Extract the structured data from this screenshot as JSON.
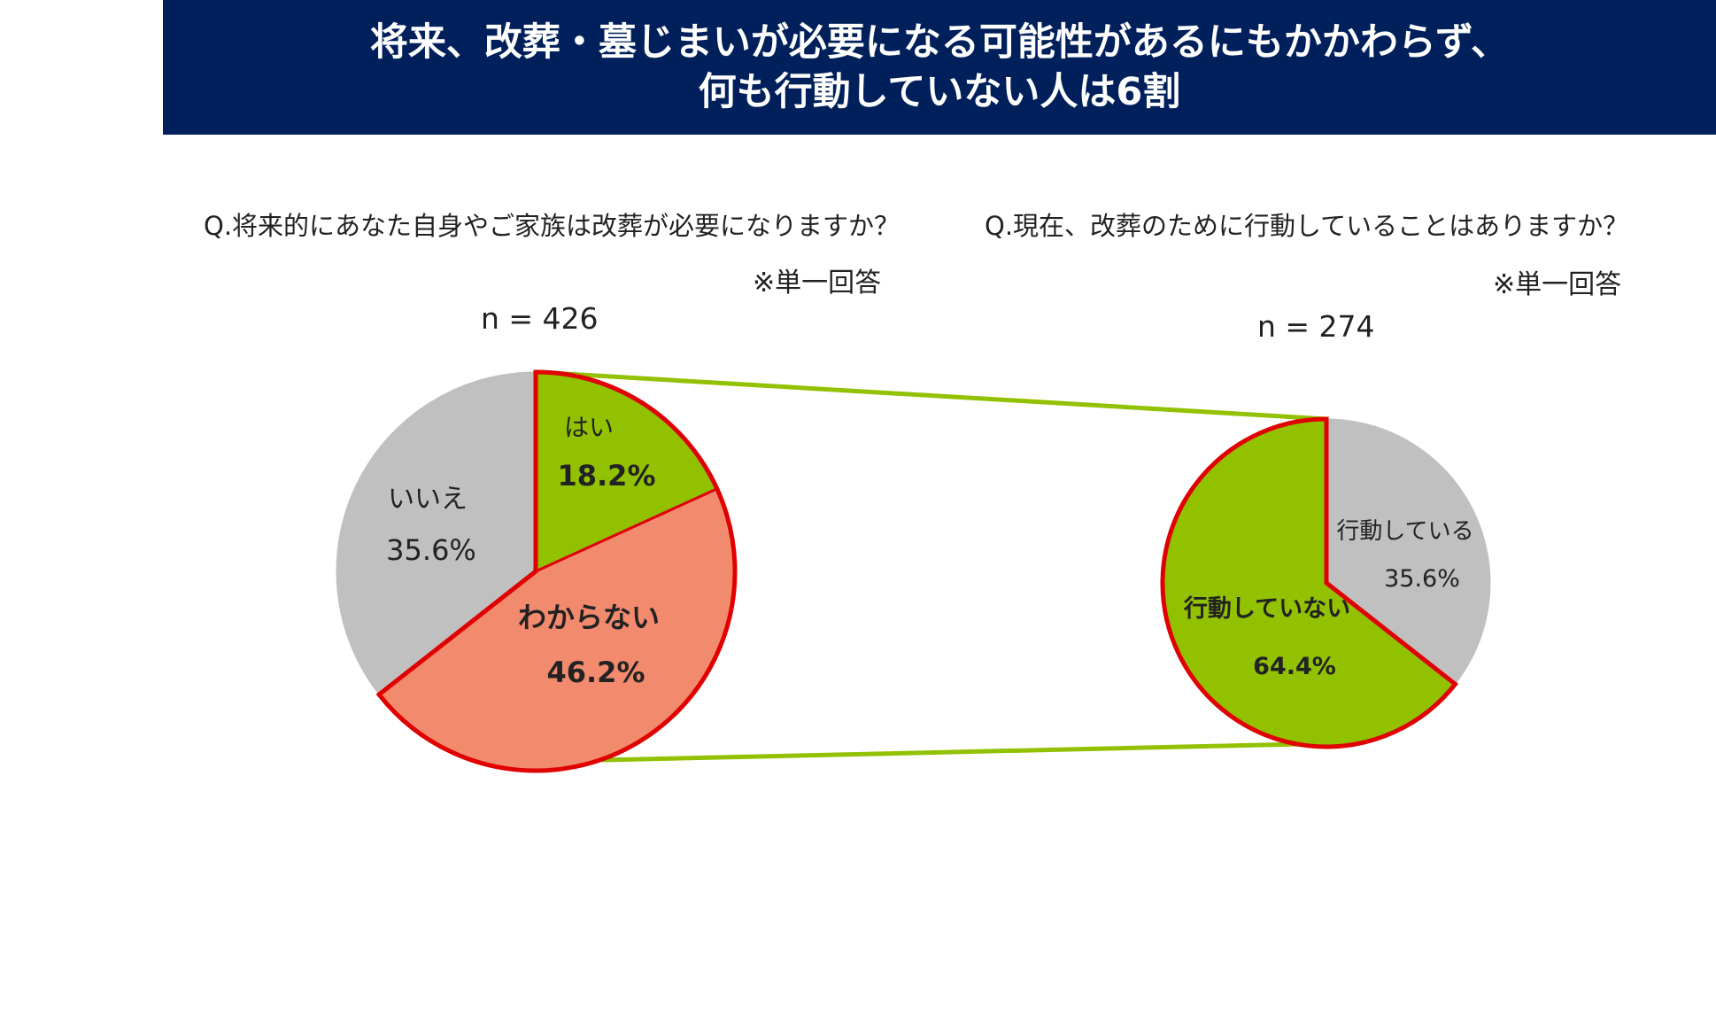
{
  "banner": {
    "line1": "将来、改葬・墓じまいが必要になる可能性があるにもかかわらず、",
    "line2": "何も行動していない人は6割"
  },
  "left": {
    "question": "Q.将来的にあなた自身やご家族は改葬が必要になりますか？",
    "note": "※単一回答",
    "n_label": "n = 426"
  },
  "right": {
    "question": "Q.現在、改葬のために行動していることはありますか？",
    "note": "※単一回答",
    "n_label": "n = 274"
  },
  "chart_data": [
    {
      "type": "pie",
      "n": 426,
      "slices": [
        {
          "label": "はい",
          "value": 18.2,
          "value_label": "18.2%",
          "color": "#92c100",
          "highlight": true,
          "bold_label": false,
          "bold_value": true
        },
        {
          "label": "わからない",
          "value": 46.2,
          "value_label": "46.2%",
          "color": "#f28a6e",
          "highlight": true,
          "bold_label": true,
          "bold_value": true
        },
        {
          "label": "いいえ",
          "value": 35.6,
          "value_label": "35.6%",
          "color": "#c0c0c0",
          "highlight": false,
          "bold_label": false,
          "bold_value": false
        }
      ]
    },
    {
      "type": "pie",
      "n": 274,
      "slices": [
        {
          "label": "行動している",
          "value": 35.6,
          "value_label": "35.6%",
          "color": "#c0c0c0",
          "highlight": false,
          "bold_label": false,
          "bold_value": false
        },
        {
          "label": "行動していない",
          "value": 64.4,
          "value_label": "64.4%",
          "color": "#92c100",
          "highlight": true,
          "bold_label": true,
          "bold_value": true
        }
      ]
    }
  ],
  "colors": {
    "banner": "#00205b",
    "highlight_outline": "#e00000",
    "connector": "#92c100"
  }
}
